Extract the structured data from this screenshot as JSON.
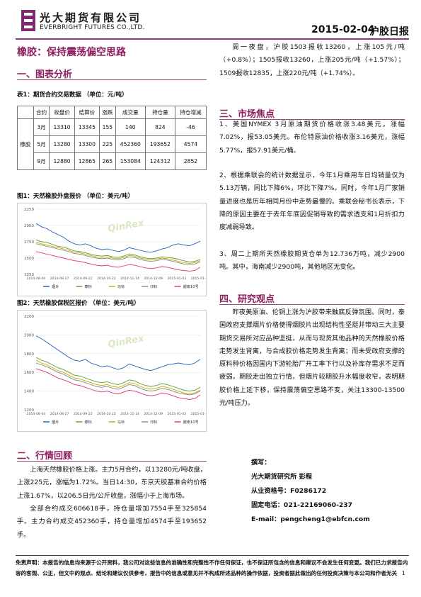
{
  "header": {
    "company_cn": "光大期货有限公司",
    "company_en": "EVERBRIGHT FUTURES CO.,LTD.",
    "date": "2015-02-04",
    "report_type": "沪胶日报",
    "brand_color": "#8a3b7b"
  },
  "title": "橡胶：保持震荡偏空思路",
  "section1": {
    "heading": "一、图表分析",
    "table_caption": "表1：期货合约交易数据 （单位：元/吨）",
    "table": {
      "headers": [
        "",
        "合约",
        "收盘价",
        "结算价",
        "涨跌",
        "成交量",
        "持仓量",
        "持仓增减"
      ],
      "group_label": "橡胶",
      "rows": [
        [
          "3月",
          "13310",
          "13345",
          "155",
          "140",
          "824",
          "-46"
        ],
        [
          "5月",
          "13280",
          "13300",
          "225",
          "452360",
          "193652",
          "4574"
        ],
        [
          "9月",
          "12880",
          "12865",
          "265",
          "153084",
          "124312",
          "2852"
        ]
      ]
    },
    "chart1_caption": "图1：天然橡胶外盘报价 （单位：美元/吨）",
    "chart2_caption": "图2：天然橡胶保税区报价 （单位：美元/吨）",
    "watermark": "QinRex"
  },
  "chart_data": [
    {
      "type": "line",
      "title": "图1：天然橡胶外盘报价 （单位：美元/吨）",
      "ylim": [
        1250,
        2250
      ],
      "yticks": [
        1250,
        1500,
        1750,
        2000,
        2250
      ],
      "xticks": [
        "2014-08-04",
        "2014-08-27",
        "2014-09-22",
        "2014-10-22",
        "2014-11-14",
        "2014-12-09",
        "2015-01-03",
        "2015-01-28"
      ],
      "series": [
        {
          "name": "烟片",
          "color": "#1f5fbf",
          "values": [
            2030,
            1980,
            1950,
            1900,
            1860,
            1820,
            1760,
            1720,
            1700,
            1720,
            1690,
            1650,
            1630,
            1640,
            1620,
            1600,
            1620,
            1660,
            1640,
            1620,
            1600,
            1590,
            1610,
            1640,
            1660,
            1700,
            1720,
            1700,
            1690,
            1720,
            1760
          ]
        },
        {
          "name": "泰标",
          "color": "#5aa02c",
          "values": [
            1780,
            1750,
            1740,
            1710,
            1680,
            1670,
            1640,
            1610,
            1600,
            1580,
            1560,
            1540,
            1530,
            1540,
            1520,
            1510,
            1530,
            1560,
            1550,
            1520,
            1500,
            1490,
            1500,
            1520,
            1510,
            1500,
            1480,
            1460,
            1440,
            1450,
            1480
          ]
        },
        {
          "name": "马标",
          "color": "#c9a800",
          "values": [
            1740,
            1720,
            1700,
            1680,
            1660,
            1640,
            1620,
            1590,
            1580,
            1560,
            1540,
            1520,
            1510,
            1520,
            1500,
            1490,
            1510,
            1540,
            1530,
            1500,
            1480,
            1470,
            1480,
            1500,
            1490,
            1470,
            1450,
            1430,
            1420,
            1430,
            1460
          ]
        },
        {
          "name": "印标",
          "color": "#888888",
          "values": [
            1720,
            1700,
            1680,
            1660,
            1640,
            1620,
            1600,
            1570,
            1560,
            1540,
            1520,
            1500,
            1490,
            1500,
            1480,
            1470,
            1490,
            1520,
            1510,
            1480,
            1460,
            1450,
            1460,
            1480,
            1470,
            1450,
            1430,
            1410,
            1400,
            1410,
            1440
          ]
        },
        {
          "name": "越南10号",
          "color": "#e0307a",
          "values": [
            1600,
            1580,
            1560,
            1540,
            1520,
            1500,
            1480,
            1460,
            1450,
            1430,
            1410,
            1390,
            1380,
            1390,
            1370,
            1360,
            1380,
            1400,
            1390,
            1370,
            1350,
            1340,
            1350,
            1370,
            1360,
            1340,
            1320,
            1310,
            1300,
            1310,
            1360
          ]
        }
      ]
    },
    {
      "type": "line",
      "title": "图2：天然橡胶保税区报价 （单位：美元/吨）",
      "ylim": [
        1200,
        2200
      ],
      "yticks": [
        1200,
        1400,
        1600,
        1800,
        2000,
        2200
      ],
      "xticks": [
        "2014-08-04",
        "2014-08-27",
        "2014-09-22",
        "2014-10-22",
        "2014-11-14",
        "2014-12-09",
        "2015-01-03",
        "2015-01-28"
      ],
      "series": [
        {
          "name": "烟片",
          "color": "#1f5fbf",
          "values": [
            1990,
            1960,
            1920,
            1880,
            1840,
            1800,
            1760,
            1730,
            1720,
            1740,
            1700,
            1680,
            1660,
            1670,
            1650,
            1630,
            1650,
            1690,
            1670,
            1650,
            1630,
            1620,
            1640,
            1660,
            1680,
            1690,
            1700,
            1690,
            1680,
            1700,
            1740
          ]
        },
        {
          "name": "泰标",
          "color": "#5aa02c",
          "values": [
            1760,
            1730,
            1710,
            1680,
            1650,
            1630,
            1600,
            1570,
            1560,
            1540,
            1520,
            1500,
            1490,
            1500,
            1480,
            1470,
            1490,
            1520,
            1510,
            1480,
            1460,
            1450,
            1460,
            1480,
            1470,
            1450,
            1430,
            1410,
            1400,
            1410,
            1440
          ]
        },
        {
          "name": "马标",
          "color": "#c9a800",
          "values": [
            1730,
            1700,
            1680,
            1650,
            1620,
            1600,
            1570,
            1540,
            1530,
            1510,
            1490,
            1470,
            1460,
            1470,
            1450,
            1440,
            1460,
            1490,
            1480,
            1450,
            1430,
            1420,
            1430,
            1450,
            1440,
            1420,
            1400,
            1380,
            1370,
            1380,
            1410
          ]
        },
        {
          "name": "印标",
          "color": "#888888",
          "values": [
            1700,
            1680,
            1660,
            1630,
            1600,
            1580,
            1550,
            1520,
            1510,
            1490,
            1470,
            1450,
            1440,
            1450,
            1430,
            1420,
            1440,
            1470,
            1460,
            1430,
            1410,
            1400,
            1410,
            1430,
            1420,
            1400,
            1380,
            1370,
            1360,
            1370,
            1400
          ]
        },
        {
          "name": "越南10号",
          "color": "#e0307a",
          "values": [
            1640,
            1620,
            1600,
            1570,
            1540,
            1520,
            1500,
            1470,
            1460,
            1440,
            1420,
            1400,
            1390,
            1400,
            1380,
            1370,
            1390,
            1410,
            1400,
            1380,
            1360,
            1350,
            1360,
            1380,
            1370,
            1350,
            1330,
            1320,
            1310,
            1320,
            1360
          ]
        }
      ]
    }
  ],
  "section2": {
    "heading": "二、行情回顾",
    "p1": "上海天然橡胶价格上涨。主力5月合约，以13280元/吨收盘，上涨225元，涨幅为1.72%。当日14:30，东京天胶基准合约价格上涨1.67%，以206.5日元/公斤收盘，涨幅小于上海市场。",
    "p2": "全部合约成交606618手，持仓量增加7554手至325854手。主力合约成交452360手，持仓量增加4574手至193652手。"
  },
  "night": {
    "p": "周一夜盘，沪胶1503报收13260，上涨105元/吨（+0.8%）；1505报收13260，上涨205元/吨（+1.57%）；1509报收12835，上涨220元/吨（+1.74%）。"
  },
  "section3": {
    "heading": "三、市场焦点",
    "p1": "1、美国NYMEX 3月原油期货价格收涨3.48美元，涨幅7.02%，报53.05美元。布伦特原油价格收涨3.16美元，涨幅5.77%，报57.91美元/桶。",
    "p2": "2、根据乘联会的统计数据显示，今年1月乘用车日均销量仅为5.13万辆，同比下降6%，环比下降7%。同时，今年1月厂家销量进度也是历年相同月份中走势最慢的。乘联会秘书长表示，下降的原因主要在于去年年底因促销导致的需求透支和1月折扣力度减弱导致。",
    "p3": "3、周二上期所天然橡胶期货仓单为12.736万吨，减少2900吨。其中，海南减少2900吨，其他地区无变化。"
  },
  "section4": {
    "heading": "四、研究观点",
    "p1": "昨夜美原油、伦铜上涨为沪胶带来触底反弹氛围。同时，泰国政府支撑烟片价格使得烟胶片出现结构性坚挺并带动三大主要期货交易所对应品种坚挺，从而与现货其他品种的天然橡胶价格走势发生背离，与合成胶价格走势发生背离；而未受政府支撑的原料种价格因国内下游轮胎厂开工率下行以及补库存需求不足而疲弱。期胶走出独立行情，但烟片较期胶升水幅度收窄，表明期胶价格上延下移，保持震荡偏空思路不变，关注13300-13500元/吨压力。"
  },
  "author": {
    "label": "撰写：",
    "name": "光大期货研究所  彭程",
    "cert": "从业资格号：F0286172",
    "phone": "固定电话：021-22169060-237",
    "email": "E-mail：pengcheng1@ebfcn.com"
  },
  "disclaimer": "免责声明：本报告的信息均来源于公开资料，我公司对这些信息的准确性和完整性不作任何保证，也不保证所包含的信息和建议不会发生任何变更。我们已力求报告内容的客观、公正，但文中的观点、结论和建议仅供参考，报告中的信息或意见并不构成所述品种的操作依据，投资者据此做出的任何投资决策与本公司和作者无关",
  "page_number": "1"
}
